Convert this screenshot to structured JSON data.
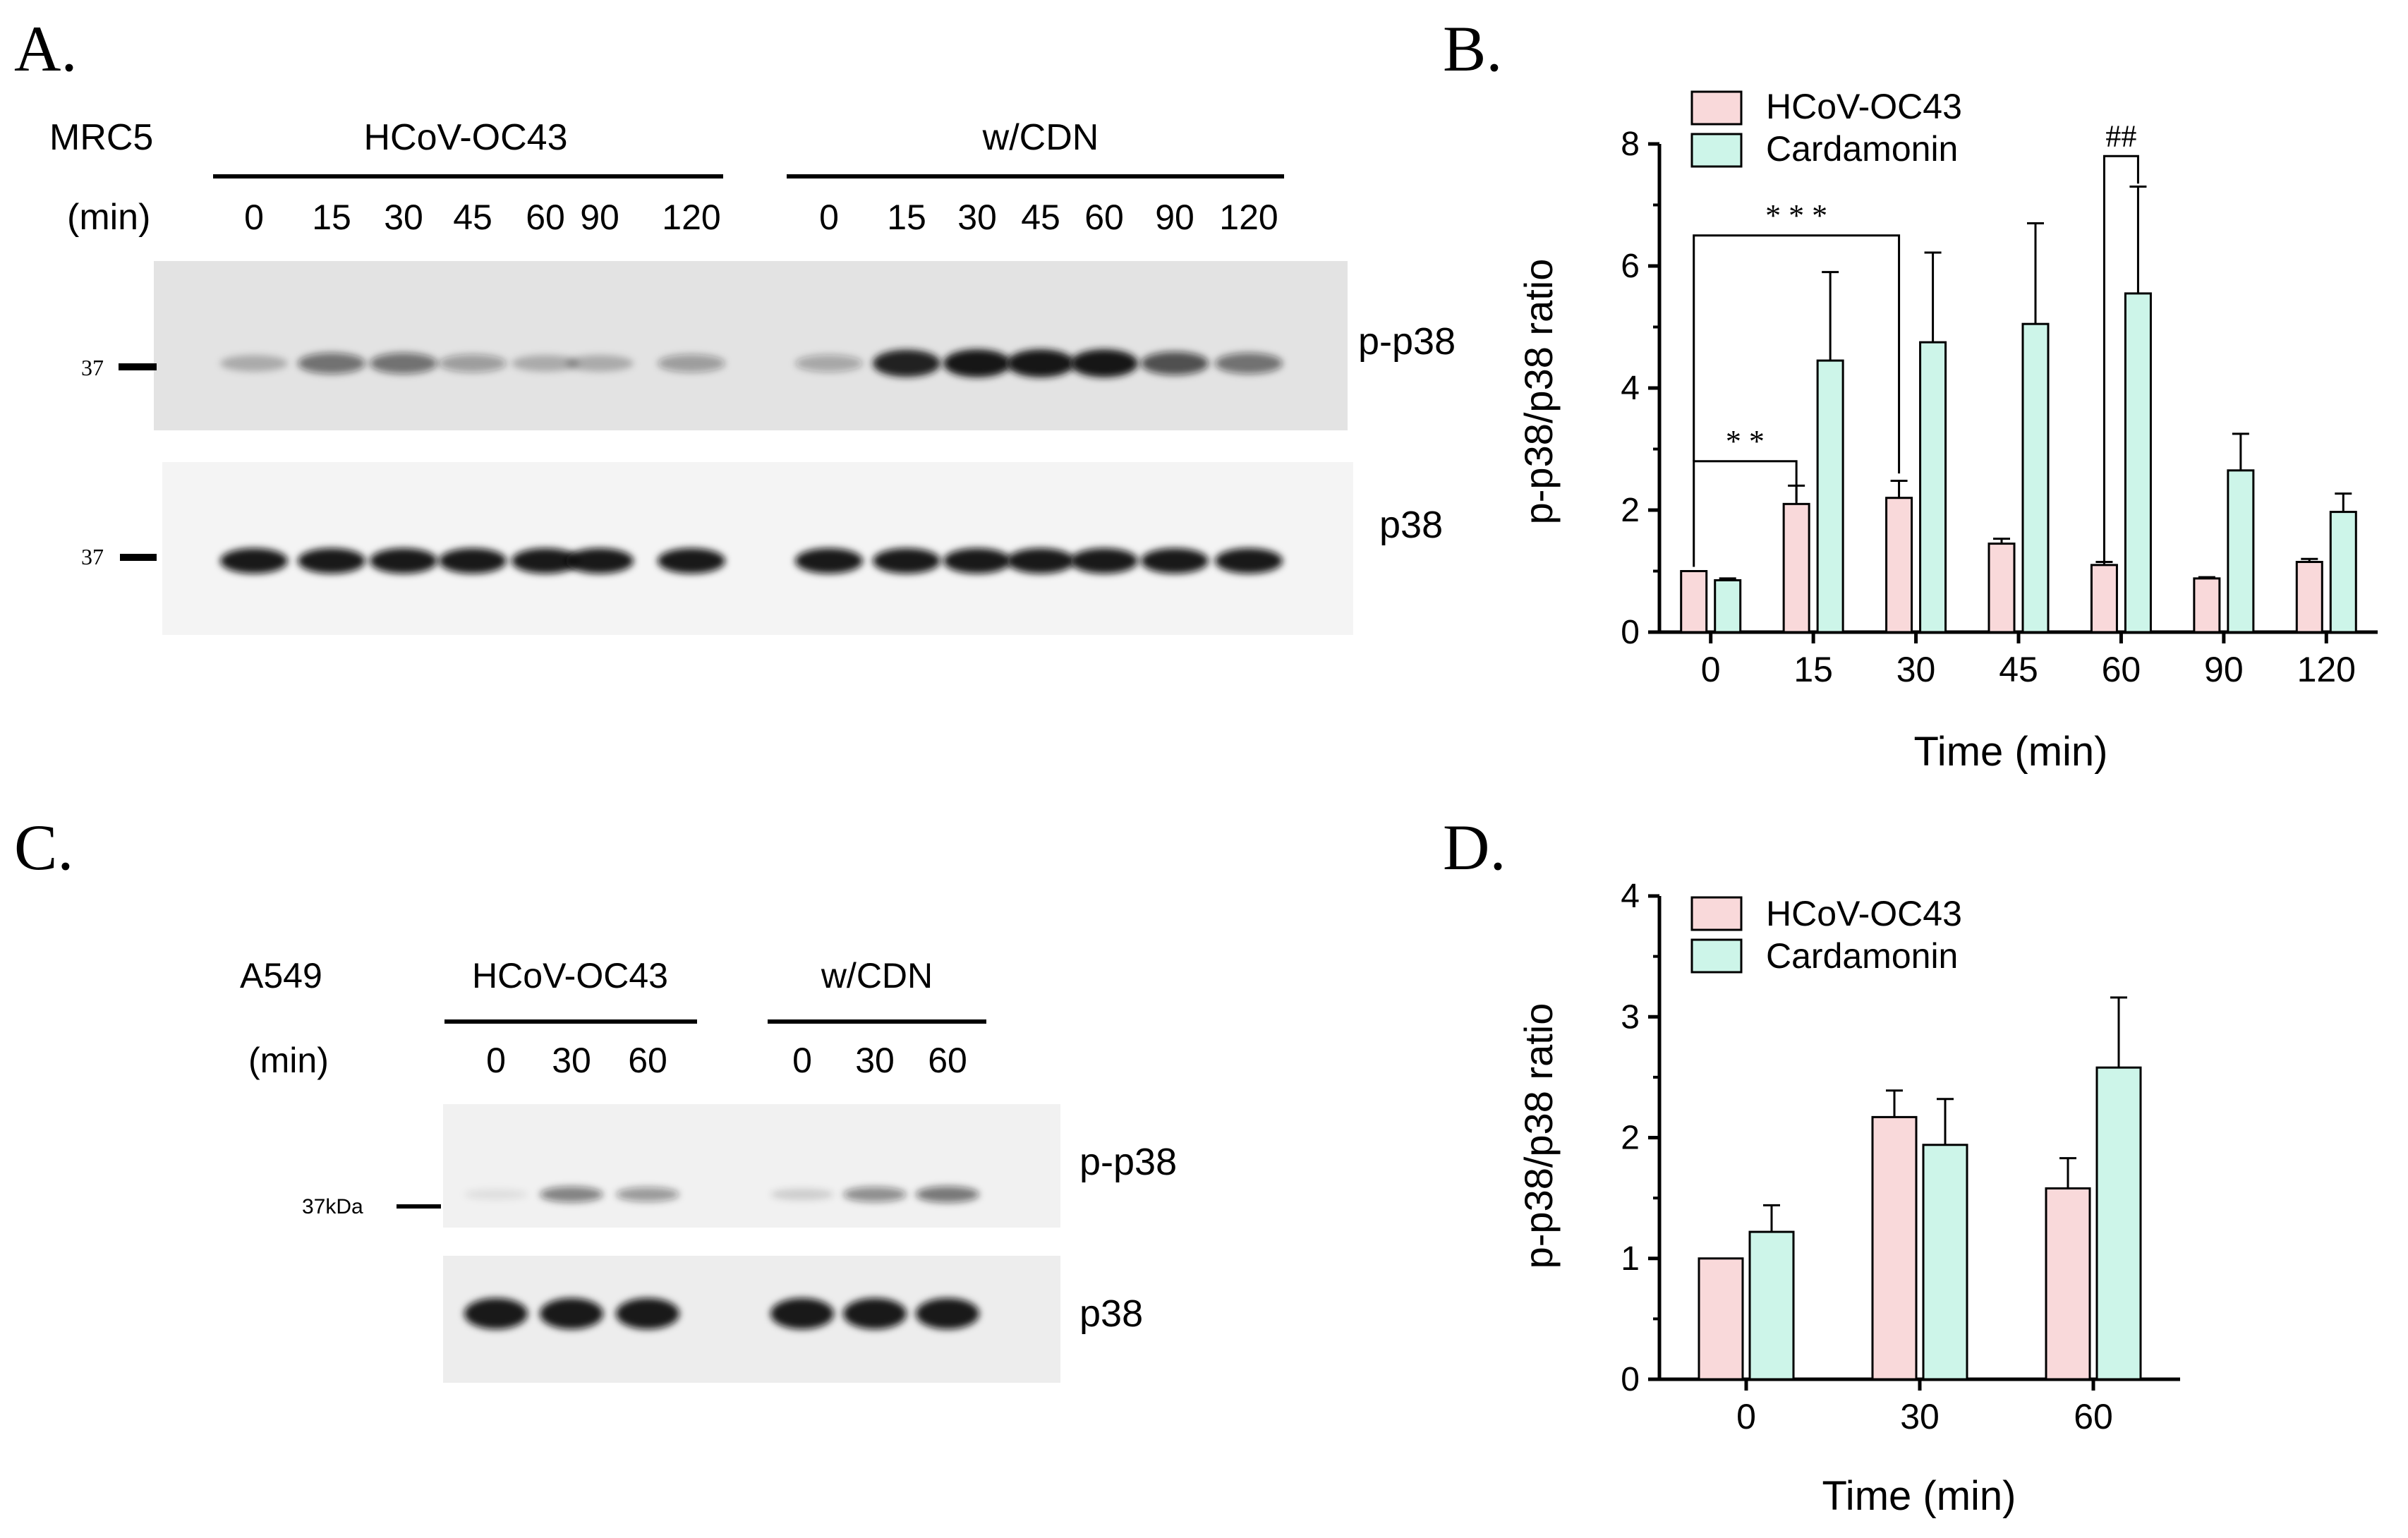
{
  "colors": {
    "hcov": "#f9d9da",
    "cdn": "#cdf5e9",
    "axis": "#000000",
    "blot_bg_a": "#e6e6e6",
    "blot_bg_b": "#f7f7f7",
    "band": "#141414"
  },
  "panelA": {
    "letter": "A.",
    "cell_line": "MRC5",
    "unit": "(min)",
    "group1": "HCoV-OC43",
    "group2": "w/CDN",
    "times": [
      "0",
      "15",
      "30",
      "45",
      "60",
      "90",
      "120",
      "0",
      "15",
      "30",
      "45",
      "60",
      "90",
      "120"
    ],
    "label_top": "p-p38",
    "label_bottom": "p38",
    "marker_top": "37",
    "marker_bottom": "37",
    "top_band_intensity": [
      0.25,
      0.55,
      0.55,
      0.35,
      0.25,
      0.25,
      0.35,
      0.3,
      0.95,
      1.0,
      1.0,
      1.0,
      0.7,
      0.55
    ],
    "bottom_band_intensity": [
      1,
      1,
      1,
      1,
      1,
      1,
      1,
      1,
      1,
      1,
      1,
      1,
      1,
      1
    ]
  },
  "panelC": {
    "letter": "C.",
    "cell_line": "A549",
    "unit": "(min)",
    "group1": "HCoV-OC43",
    "group2": "w/CDN",
    "times": [
      "0",
      "30",
      "60",
      "0",
      "30",
      "60"
    ],
    "label_top": "p-p38",
    "label_bottom": "p38",
    "marker": "37kDa",
    "top_band_intensity": [
      0.05,
      0.5,
      0.4,
      0.15,
      0.45,
      0.55
    ],
    "bottom_band_intensity": [
      1,
      1,
      1,
      1,
      1,
      1
    ]
  },
  "chart_data": [
    {
      "panel": "B.",
      "type": "bar",
      "categories": [
        "0",
        "15",
        "30",
        "45",
        "60",
        "90",
        "120"
      ],
      "series": [
        {
          "name": "HCoV-OC43",
          "values": [
            1.0,
            2.1,
            2.2,
            1.45,
            1.1,
            0.88,
            1.15
          ],
          "errors": [
            0.0,
            0.3,
            0.28,
            0.08,
            0.05,
            0.02,
            0.05
          ]
        },
        {
          "name": "Cardamonin",
          "values": [
            0.85,
            4.45,
            4.75,
            5.05,
            5.55,
            2.65,
            1.97
          ],
          "errors": [
            0.03,
            1.45,
            1.47,
            1.65,
            1.75,
            0.6,
            0.3
          ]
        }
      ],
      "xlabel": "Time (min)",
      "ylabel": "p-p38/p38 ratio",
      "ylim": [
        0,
        8
      ],
      "yticks": [
        "0",
        "2",
        "4",
        "6",
        "8"
      ],
      "annotations": [
        "* *",
        "* * *",
        "##"
      ],
      "legend": "top-left"
    },
    {
      "panel": "D.",
      "type": "bar",
      "categories": [
        "0",
        "30",
        "60"
      ],
      "series": [
        {
          "name": "HCoV-OC43",
          "values": [
            1.0,
            2.17,
            1.58
          ],
          "errors": [
            0.0,
            0.22,
            0.25
          ]
        },
        {
          "name": "Cardamonin",
          "values": [
            1.22,
            1.94,
            2.58
          ],
          "errors": [
            0.22,
            0.38,
            0.58
          ]
        }
      ],
      "xlabel": "Time (min)",
      "ylabel": "p-p38/p38 ratio",
      "ylim": [
        0,
        4
      ],
      "yticks": [
        "0",
        "1",
        "2",
        "3",
        "4"
      ],
      "legend": "top-left"
    }
  ]
}
